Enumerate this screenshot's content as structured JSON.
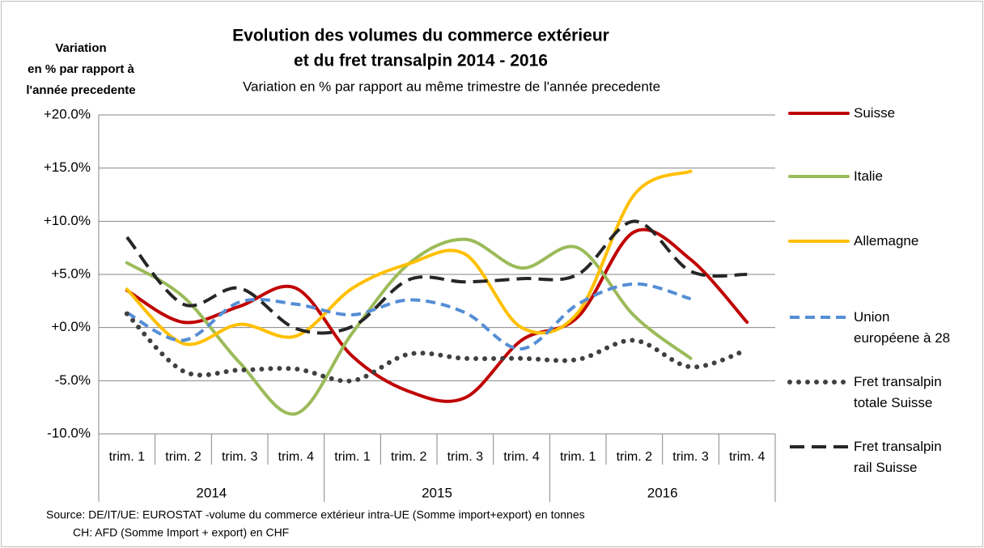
{
  "chart_data": {
    "type": "line",
    "title": [
      "Evolution des volumes du commerce extérieur",
      "et du fret transalpin 2014 - 2016"
    ],
    "subtitle": "Variation en % par rapport au même trimestre de l'année precedente",
    "y_label": [
      "Variation",
      "en % par rapport à",
      "l'année precedente"
    ],
    "categories": [
      "trim. 1",
      "trim. 2",
      "trim. 3",
      "trim. 4",
      "trim. 1",
      "trim. 2",
      "trim. 3",
      "trim. 4",
      "trim. 1",
      "trim. 2",
      "trim. 3",
      "trim. 4"
    ],
    "x_groups": [
      "2014",
      "2015",
      "2016"
    ],
    "ylim": [
      -10,
      20
    ],
    "yticks": [
      {
        "value": -10,
        "label": "-10.0%"
      },
      {
        "value": -5,
        "label": "-5.0%"
      },
      {
        "value": 0,
        "label": "+0.0%"
      },
      {
        "value": 5,
        "label": "+5.0%"
      },
      {
        "value": 10,
        "label": "+10.0%"
      },
      {
        "value": 15,
        "label": "+15.0%"
      },
      {
        "value": 20,
        "label": "+20.0%"
      }
    ],
    "grid": true,
    "smooth": true,
    "legend": "right",
    "series": [
      {
        "name": "Suisse",
        "color": "#c00000",
        "style": "solid",
        "values": [
          3.5,
          0.5,
          2.0,
          3.7,
          -2.7,
          -6.0,
          -6.6,
          -1.2,
          1.0,
          9.0,
          6.4,
          0.5
        ]
      },
      {
        "name": "Italie",
        "color": "#9bbb59",
        "style": "solid",
        "values": [
          6.1,
          2.9,
          -3.3,
          -8.1,
          -0.5,
          6.0,
          8.3,
          5.6,
          7.5,
          1.1,
          -2.9,
          null
        ]
      },
      {
        "name": "Allemagne",
        "color": "#ffc000",
        "style": "solid",
        "values": [
          3.6,
          -1.5,
          0.3,
          -0.8,
          3.7,
          6.0,
          6.9,
          0.0,
          1.4,
          12.5,
          14.7,
          null
        ]
      },
      {
        "name": "Union européene à 28",
        "color": "#558ed5",
        "style": "dashed",
        "values": [
          1.4,
          -1.2,
          2.4,
          2.2,
          1.2,
          2.6,
          1.4,
          -2.0,
          2.2,
          4.1,
          2.7,
          null
        ]
      },
      {
        "name": "Fret transalpin totale Suisse",
        "color": "#404040",
        "style": "dotted",
        "values": [
          1.3,
          -4.1,
          -4.0,
          -3.9,
          -5.0,
          -2.5,
          -2.9,
          -2.9,
          -3.0,
          -1.2,
          -3.7,
          -2.1
        ]
      },
      {
        "name": "Fret transalpin rail Suisse",
        "color": "#262626",
        "style": "longdash",
        "values": [
          8.5,
          2.2,
          3.7,
          -0.1,
          0.1,
          4.5,
          4.3,
          4.6,
          5.0,
          10.0,
          5.3,
          5.0
        ]
      }
    ],
    "source": [
      "Source: DE/IT/UE: EUROSTAT -volume du commerce extérieur intra-UE (Somme import+export) en tonnes",
      "CH: AFD (Somme Import + export) en CHF"
    ]
  }
}
